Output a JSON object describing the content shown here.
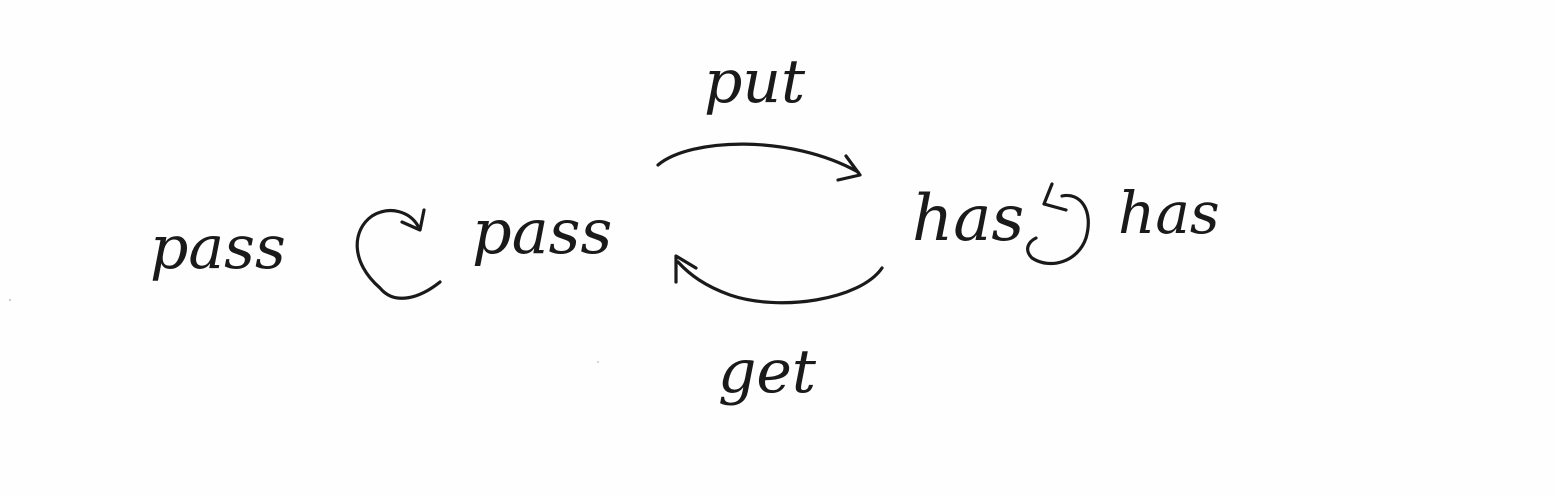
{
  "diagram": {
    "nodes": {
      "pass_left": "pass",
      "pass_right": "pass",
      "has_left": "has",
      "has_right": "has"
    },
    "edges": {
      "put": "put",
      "get": "get"
    },
    "colors": {
      "ink": "#1a1a1a",
      "paper": "#fefefe"
    }
  }
}
